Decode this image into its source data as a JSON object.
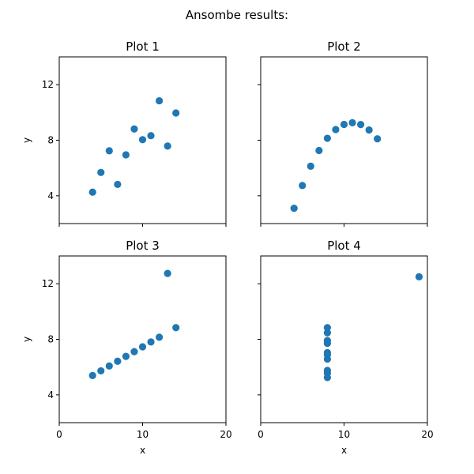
{
  "figure": {
    "suptitle": "Ansombe results:"
  },
  "chart_data": [
    {
      "type": "scatter",
      "title": "Plot 1",
      "xlabel": "",
      "ylabel": "y",
      "xlim": [
        0,
        20
      ],
      "ylim": [
        2,
        14
      ],
      "xticks": [
        0,
        10,
        20
      ],
      "yticks": [
        4,
        8,
        12
      ],
      "show_xticklabels": false,
      "show_yticklabels": true,
      "grid": false,
      "marker_color": "#1f77b4",
      "x": [
        10,
        8,
        13,
        9,
        11,
        14,
        6,
        4,
        12,
        7,
        5
      ],
      "y": [
        8.04,
        6.95,
        7.58,
        8.81,
        8.33,
        9.96,
        7.24,
        4.26,
        10.84,
        4.82,
        5.68
      ]
    },
    {
      "type": "scatter",
      "title": "Plot 2",
      "xlabel": "",
      "ylabel": "",
      "xlim": [
        0,
        20
      ],
      "ylim": [
        2,
        14
      ],
      "xticks": [
        0,
        10,
        20
      ],
      "yticks": [
        4,
        8,
        12
      ],
      "show_xticklabels": false,
      "show_yticklabels": false,
      "grid": false,
      "marker_color": "#1f77b4",
      "x": [
        10,
        8,
        13,
        9,
        11,
        14,
        6,
        4,
        12,
        7,
        5
      ],
      "y": [
        9.14,
        8.14,
        8.74,
        8.77,
        9.26,
        8.1,
        6.13,
        3.1,
        9.13,
        7.26,
        4.74
      ]
    },
    {
      "type": "scatter",
      "title": "Plot 3",
      "xlabel": "x",
      "ylabel": "y",
      "xlim": [
        0,
        20
      ],
      "ylim": [
        2,
        14
      ],
      "xticks": [
        0,
        10,
        20
      ],
      "yticks": [
        4,
        8,
        12
      ],
      "show_xticklabels": true,
      "show_yticklabels": true,
      "grid": false,
      "marker_color": "#1f77b4",
      "x": [
        10,
        8,
        13,
        9,
        11,
        14,
        6,
        4,
        12,
        7,
        5
      ],
      "y": [
        7.46,
        6.77,
        12.74,
        7.11,
        7.81,
        8.84,
        6.08,
        5.39,
        8.15,
        6.42,
        5.73
      ]
    },
    {
      "type": "scatter",
      "title": "Plot 4",
      "xlabel": "x",
      "ylabel": "",
      "xlim": [
        0,
        20
      ],
      "ylim": [
        2,
        14
      ],
      "xticks": [
        0,
        10,
        20
      ],
      "yticks": [
        4,
        8,
        12
      ],
      "show_xticklabels": true,
      "show_yticklabels": false,
      "grid": false,
      "marker_color": "#1f77b4",
      "x": [
        8,
        8,
        8,
        8,
        8,
        8,
        8,
        19,
        8,
        8,
        8
      ],
      "y": [
        6.58,
        5.76,
        7.71,
        8.84,
        8.47,
        7.04,
        5.25,
        12.5,
        5.56,
        7.91,
        6.89
      ]
    }
  ]
}
